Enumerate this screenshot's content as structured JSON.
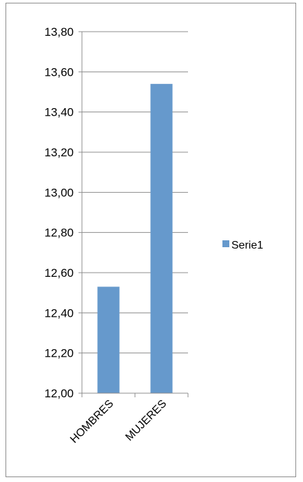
{
  "chart_data": {
    "type": "bar",
    "categories": [
      "HOMBRES",
      "MUJERES"
    ],
    "series": [
      {
        "name": "Serie1",
        "values": [
          12.53,
          13.54
        ],
        "color": "#6699cc"
      }
    ],
    "ylim": [
      12.0,
      13.8
    ],
    "yticks": [
      "12,00",
      "12,20",
      "12,40",
      "12,60",
      "12,80",
      "13,00",
      "13,20",
      "13,40",
      "13,60",
      "13,80"
    ],
    "grid": true,
    "legend_position": "right",
    "gridline_color": "#8c8c8c",
    "axis_color": "#8c8c8c"
  }
}
